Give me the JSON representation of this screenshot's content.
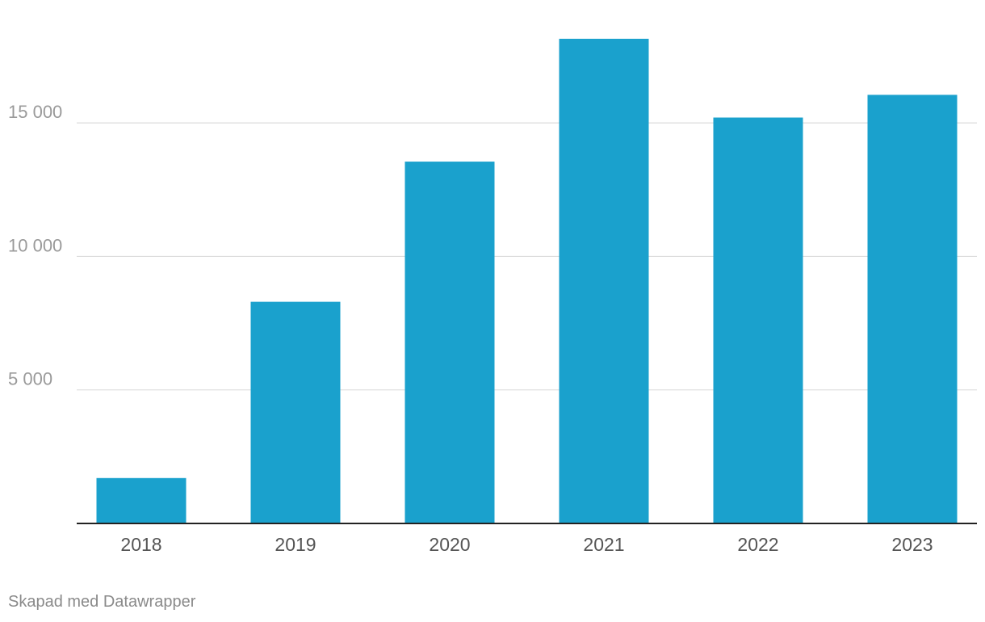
{
  "chart_data": {
    "type": "bar",
    "title": "",
    "xlabel": "",
    "ylabel": "",
    "categories": [
      "2018",
      "2019",
      "2020",
      "2021",
      "2022",
      "2023"
    ],
    "values": [
      1700,
      8300,
      13550,
      18150,
      15200,
      16050
    ],
    "ylim": [
      0,
      18150
    ],
    "yticks": [
      5000,
      10000,
      15000
    ],
    "ytick_labels": [
      "5 000",
      "10 000",
      "15 000"
    ],
    "grid": true,
    "bar_color": "#1aa1cd"
  },
  "footer": {
    "credit": "Skapad med Datawrapper"
  }
}
